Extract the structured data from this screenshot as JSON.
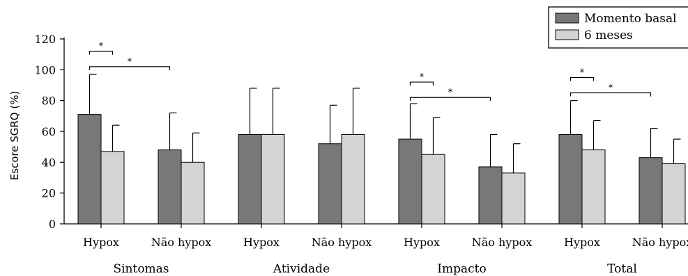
{
  "chart_data": {
    "type": "bar",
    "title": "",
    "xlabel": "",
    "ylabel": "Escore SGRQ (%)",
    "ylim": [
      0,
      120
    ],
    "yticks": [
      0,
      20,
      40,
      60,
      80,
      100,
      120
    ],
    "grid": false,
    "legend_position": "top-right",
    "colors": {
      "Momento basal": "#787878",
      "6 meses": "#d4d4d4"
    },
    "groups": [
      "Sintomas",
      "Atividade",
      "Impacto",
      "Total"
    ],
    "categories": [
      "Hypox",
      "Não hypox",
      "Hypox",
      "Não hypox",
      "Hypox",
      "Não hypox",
      "Hypox",
      "Não hypox"
    ],
    "series": [
      {
        "name": "Momento basal",
        "values": [
          71,
          48,
          58,
          52,
          55,
          37,
          58,
          43
        ],
        "error": [
          26,
          24,
          30,
          25,
          23,
          21,
          22,
          19
        ]
      },
      {
        "name": "6 meses",
        "values": [
          47,
          40,
          58,
          58,
          45,
          33,
          48,
          39
        ],
        "error": [
          17,
          19,
          30,
          30,
          24,
          19,
          19,
          16
        ]
      }
    ],
    "significance": [
      {
        "label": "*",
        "from": [
          0,
          0
        ],
        "to": [
          0,
          1
        ],
        "y": 112
      },
      {
        "label": "*",
        "from": [
          0,
          0
        ],
        "to": [
          1,
          0
        ],
        "y": 102
      },
      {
        "label": "*",
        "from": [
          4,
          0
        ],
        "to": [
          4,
          1
        ],
        "y": 92
      },
      {
        "label": "*",
        "from": [
          4,
          0
        ],
        "to": [
          5,
          0
        ],
        "y": 82
      },
      {
        "label": "*",
        "from": [
          6,
          0
        ],
        "to": [
          6,
          1
        ],
        "y": 95
      },
      {
        "label": "*",
        "from": [
          6,
          0
        ],
        "to": [
          7,
          0
        ],
        "y": 85
      }
    ]
  }
}
